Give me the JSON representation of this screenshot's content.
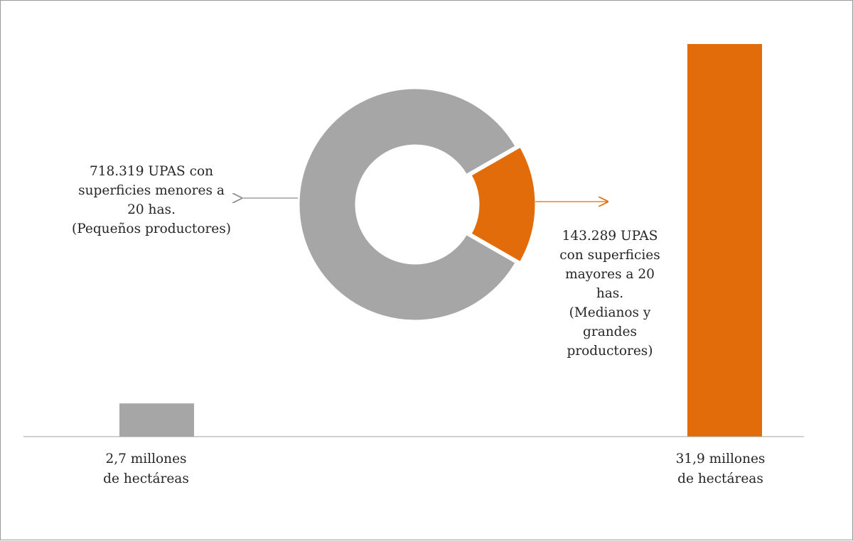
{
  "chart_data": [
    {
      "type": "pie",
      "variant": "donut",
      "slices": [
        {
          "value": 718319,
          "label_lines": [
            "718.319 UPAS con",
            "superficies menores a",
            "20 has.",
            "(Pequeños productores)"
          ],
          "color": "#a6a6a6"
        },
        {
          "value": 143289,
          "label_lines": [
            "143.289 UPAS",
            "con superficies",
            "mayores a 20",
            "has.",
            "(Medianos y",
            "grandes",
            "productores)"
          ],
          "color": "#e36c0a"
        }
      ]
    },
    {
      "type": "bar",
      "categories": [
        [
          "2,7 millones",
          "de hectáreas"
        ],
        [
          "31,9 millones",
          "de hectáreas"
        ]
      ],
      "values": [
        2.7,
        31.9
      ],
      "colors": [
        "#a6a6a6",
        "#e36c0a"
      ],
      "ylim": [
        0,
        31.9
      ],
      "grid": false,
      "legend": "none"
    }
  ]
}
